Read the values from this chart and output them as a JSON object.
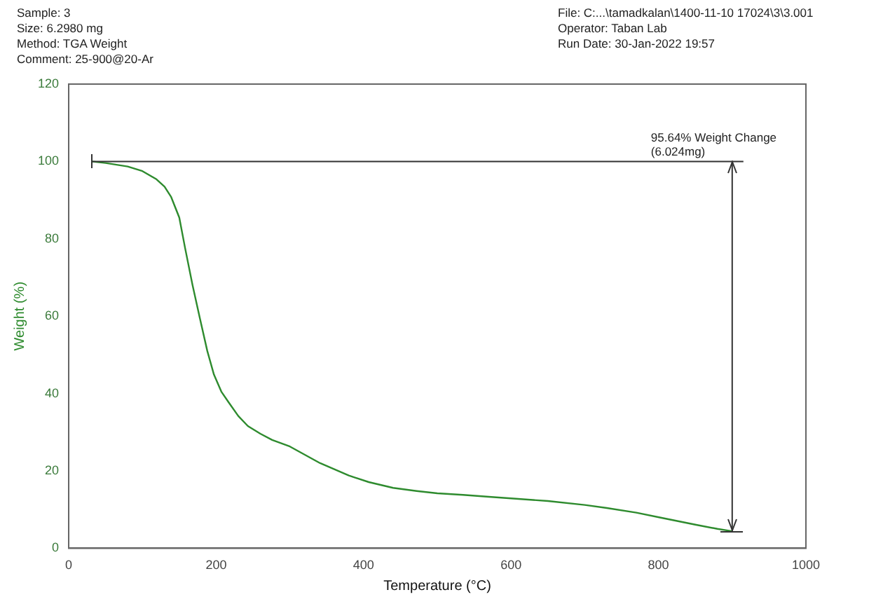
{
  "chart_data": {
    "type": "line",
    "xlabel": "Temperature (°C)",
    "ylabel": "Weight (%)",
    "series": [
      {
        "color": "#2e8b2e",
        "x": [
          31,
          50,
          80,
          100,
          119,
          130,
          139,
          150,
          158,
          168,
          178,
          188,
          197,
          207,
          217,
          230,
          243,
          260,
          276,
          300,
          341,
          380,
          407,
          440,
          472,
          500,
          535,
          570,
          600,
          650,
          700,
          730,
          770,
          803,
          850,
          880,
          900
        ],
        "values": [
          100,
          99.6,
          98.7,
          97.5,
          95.4,
          93.5,
          90.8,
          85.5,
          77.5,
          68,
          59.4,
          51,
          44.9,
          40.5,
          37.7,
          34.2,
          31.6,
          29.6,
          28,
          26.3,
          22,
          18.8,
          17.1,
          15.6,
          14.8,
          14.2,
          13.8,
          13.3,
          12.9,
          12.2,
          11.2,
          10.4,
          9.2,
          7.9,
          6.1,
          5,
          4.4
        ]
      }
    ],
    "xlim": [
      0,
      1000
    ],
    "xticks": [
      0,
      200,
      400,
      600,
      800,
      1000
    ],
    "ylim": [
      0,
      120
    ],
    "yticks": [
      0,
      20,
      40,
      60,
      80,
      100,
      120
    ],
    "grid": false,
    "legend": false,
    "marker": "none",
    "line_style": "solid",
    "ref_lines": [
      {
        "axis": "y",
        "value": 100,
        "color": "#333333"
      },
      {
        "axis": "x",
        "value": 900,
        "label": "95.64% Weight Change\n(6.024mg)",
        "color": "#333333"
      }
    ],
    "annotations": [
      "Sample: 3",
      "Size: 6.2980 mg",
      "Method: TGA Weight",
      "Comment: 25-900@20-Ar",
      "File: C:...\\tamadkalan\\1400-11-10 17024\\3\\3.001",
      "Operator: Taban Lab",
      "Run Date: 30-Jan-2022 19:57"
    ]
  }
}
